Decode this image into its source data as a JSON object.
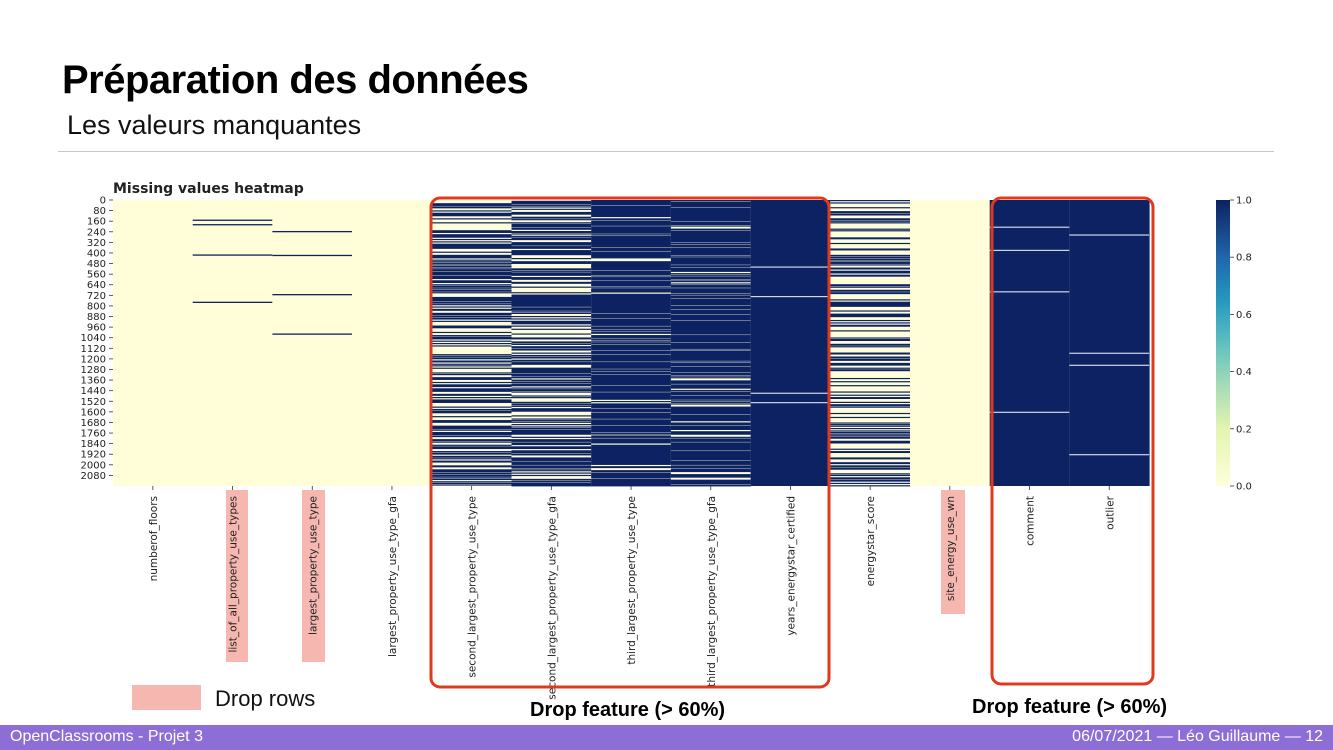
{
  "slide": {
    "title": "Préparation des données",
    "subtitle": "Les valeurs manquantes"
  },
  "annotations": {
    "drop_rows_label": "Drop rows",
    "drop_feature_label_1": "Drop feature (> 60%)",
    "drop_feature_label_2": "Drop feature (> 60%)",
    "drop_rows_color": "#f6b7b0",
    "box_color": "#e03a1e"
  },
  "footer": {
    "left": "OpenClassrooms - Projet 3",
    "right": "06/07/2021  — Léo Guillaume —  12"
  },
  "colors": {
    "present": "#fffed8",
    "missing": "#0c2262",
    "footer_bg": "#8d6ed6"
  },
  "chart_data": {
    "type": "heatmap",
    "title": "Missing values heatmap",
    "y_ticks": [
      "0",
      "80",
      "160",
      "240",
      "320",
      "400",
      "480",
      "560",
      "640",
      "720",
      "800",
      "880",
      "960",
      "1040",
      "1120",
      "1200",
      "1280",
      "1360",
      "1440",
      "1520",
      "1600",
      "1680",
      "1760",
      "1840",
      "1920",
      "2000",
      "2080"
    ],
    "row_count": 2160,
    "columns": [
      {
        "name": "numberof_floors",
        "missing_fraction": 0.0,
        "drop_rows": false,
        "drop_feature": false
      },
      {
        "name": "list_of_all_property_use_types",
        "missing_fraction": 0.005,
        "drop_rows": true,
        "drop_feature": false
      },
      {
        "name": "largest_property_use_type",
        "missing_fraction": 0.005,
        "drop_rows": true,
        "drop_feature": false
      },
      {
        "name": "largest_property_use_type_gfa",
        "missing_fraction": 0.0,
        "drop_rows": false,
        "drop_feature": false
      },
      {
        "name": "second_largest_property_use_type",
        "missing_fraction": 0.5,
        "drop_rows": false,
        "drop_feature": true
      },
      {
        "name": "second_largest_property_use_type_gfa",
        "missing_fraction": 0.5,
        "drop_rows": false,
        "drop_feature": true
      },
      {
        "name": "third_largest_property_use_type",
        "missing_fraction": 0.8,
        "drop_rows": false,
        "drop_feature": true
      },
      {
        "name": "third_largest_property_use_type_gfa",
        "missing_fraction": 0.8,
        "drop_rows": false,
        "drop_feature": true
      },
      {
        "name": "years_energystar_certified",
        "missing_fraction": 0.95,
        "drop_rows": false,
        "drop_feature": true
      },
      {
        "name": "energystar_score",
        "missing_fraction": 0.33,
        "drop_rows": false,
        "drop_feature": false
      },
      {
        "name": "site_energy_use_wn",
        "missing_fraction": 0.0,
        "drop_rows": true,
        "drop_feature": false
      },
      {
        "name": "comment",
        "missing_fraction": 0.995,
        "drop_rows": false,
        "drop_feature": true
      },
      {
        "name": "outlier",
        "missing_fraction": 0.99,
        "drop_rows": false,
        "drop_feature": true
      }
    ],
    "colorbar": {
      "ticks": [
        "0.0",
        "0.2",
        "0.4",
        "0.6",
        "0.8",
        "1.0"
      ],
      "range": [
        0,
        1
      ],
      "colormap": "YlGnBu"
    },
    "grid": false
  }
}
